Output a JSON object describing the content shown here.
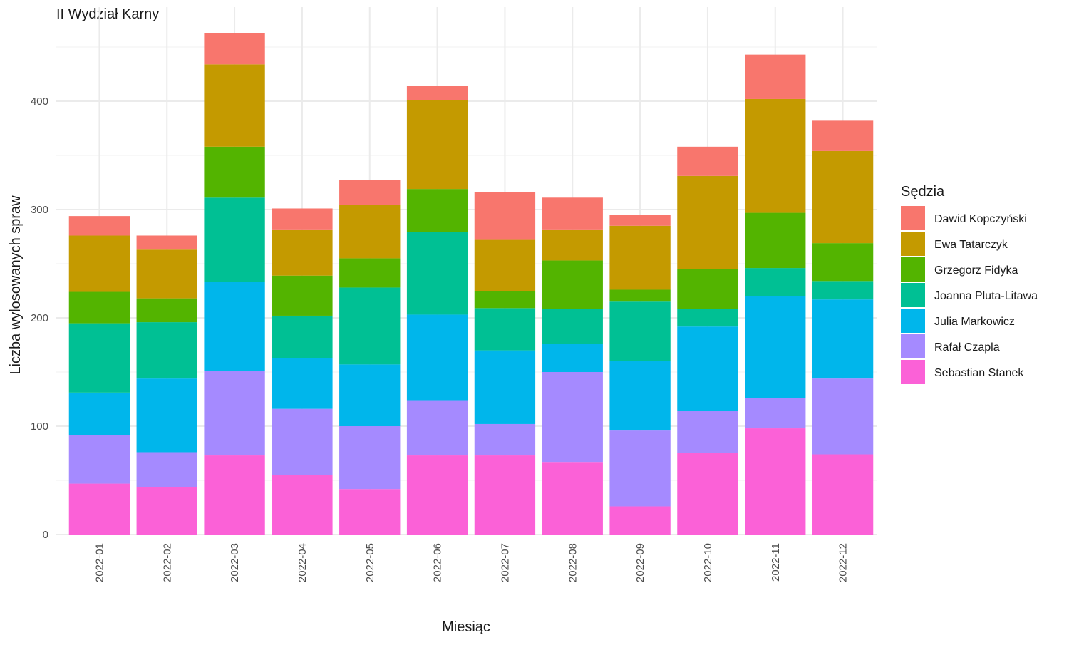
{
  "chart_data": {
    "type": "bar",
    "stacked": true,
    "title": "II Wydział Karny",
    "xlabel": "Miesiąc",
    "ylabel": "Liczba wylosowanych spraw",
    "ylim": [
      0,
      470
    ],
    "yticks": [
      0,
      100,
      200,
      300,
      400
    ],
    "grid": true,
    "legend_position": "right",
    "legend_title": "Sędzia",
    "categories": [
      "2022-01",
      "2022-02",
      "2022-03",
      "2022-04",
      "2022-05",
      "2022-06",
      "2022-07",
      "2022-08",
      "2022-09",
      "2022-10",
      "2022-11",
      "2022-12"
    ],
    "series": [
      {
        "name": "Sebastian Stanek",
        "color": "#FB61D7",
        "values": [
          47,
          44,
          73,
          55,
          42,
          73,
          73,
          67,
          26,
          75,
          98,
          74
        ]
      },
      {
        "name": "Rafał Czapla",
        "color": "#A58AFF",
        "values": [
          45,
          32,
          78,
          61,
          58,
          51,
          29,
          83,
          70,
          39,
          28,
          70
        ]
      },
      {
        "name": "Julia Markowicz",
        "color": "#00B6EB",
        "values": [
          39,
          68,
          82,
          47,
          57,
          79,
          68,
          26,
          64,
          78,
          94,
          73
        ]
      },
      {
        "name": "Joanna Pluta-Litawa",
        "color": "#00C094",
        "values": [
          64,
          52,
          78,
          39,
          71,
          76,
          39,
          32,
          55,
          16,
          26,
          17
        ]
      },
      {
        "name": "Grzegorz Fidyka",
        "color": "#53B400",
        "values": [
          29,
          22,
          47,
          37,
          27,
          40,
          16,
          45,
          11,
          37,
          51,
          35
        ]
      },
      {
        "name": "Ewa Tatarczyk",
        "color": "#C49A00",
        "values": [
          52,
          45,
          76,
          42,
          49,
          82,
          47,
          28,
          59,
          86,
          105,
          85
        ]
      },
      {
        "name": "Dawid Kopczyński",
        "color": "#F8766D",
        "values": [
          18,
          13,
          29,
          20,
          23,
          13,
          44,
          30,
          10,
          27,
          41,
          28
        ]
      }
    ],
    "legend_order": [
      "Dawid Kopczyński",
      "Ewa Tatarczyk",
      "Grzegorz Fidyka",
      "Joanna Pluta-Litawa",
      "Julia Markowicz",
      "Rafał Czapla",
      "Sebastian Stanek"
    ]
  }
}
